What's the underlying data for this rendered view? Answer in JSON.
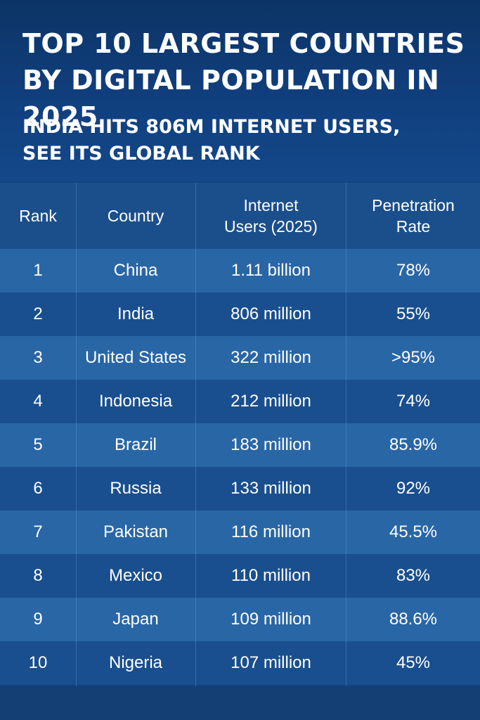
{
  "header": {
    "title": "TOP 10 LARGEST COUNTRIES\nBY DIGITAL POPULATION IN 2025",
    "subtitle": "INDIA HITS 806M INTERNET USERS,\nSEE ITS GLOBAL RANK"
  },
  "table": {
    "headers": {
      "rank": "Rank",
      "country": "Country",
      "users": "Internet\nUsers (2025)",
      "rate": "Penetration\nRate"
    },
    "rows": [
      {
        "rank": "1",
        "country": "China",
        "users": "1.11 billion",
        "rate": "78%"
      },
      {
        "rank": "2",
        "country": "India",
        "users": "806 million",
        "rate": "55%"
      },
      {
        "rank": "3",
        "country": "United States",
        "users": "322 million",
        "rate": ">95%"
      },
      {
        "rank": "4",
        "country": "Indonesia",
        "users": "212 million",
        "rate": "74%"
      },
      {
        "rank": "5",
        "country": "Brazil",
        "users": "183 million",
        "rate": "85.9%"
      },
      {
        "rank": "6",
        "country": "Russia",
        "users": "133 million",
        "rate": "92%"
      },
      {
        "rank": "7",
        "country": "Pakistan",
        "users": "116 million",
        "rate": "45.5%"
      },
      {
        "rank": "8",
        "country": "Mexico",
        "users": "110 million",
        "rate": "83%"
      },
      {
        "rank": "9",
        "country": "Japan",
        "users": "109 million",
        "rate": "88.6%"
      },
      {
        "rank": "10",
        "country": "Nigeria",
        "users": "107 million",
        "rate": "45%"
      }
    ]
  },
  "colors": {
    "header_bg": "#0c3466",
    "row_light": "#2966a6",
    "row_dark": "#194f8e",
    "text": "#ffffff"
  }
}
